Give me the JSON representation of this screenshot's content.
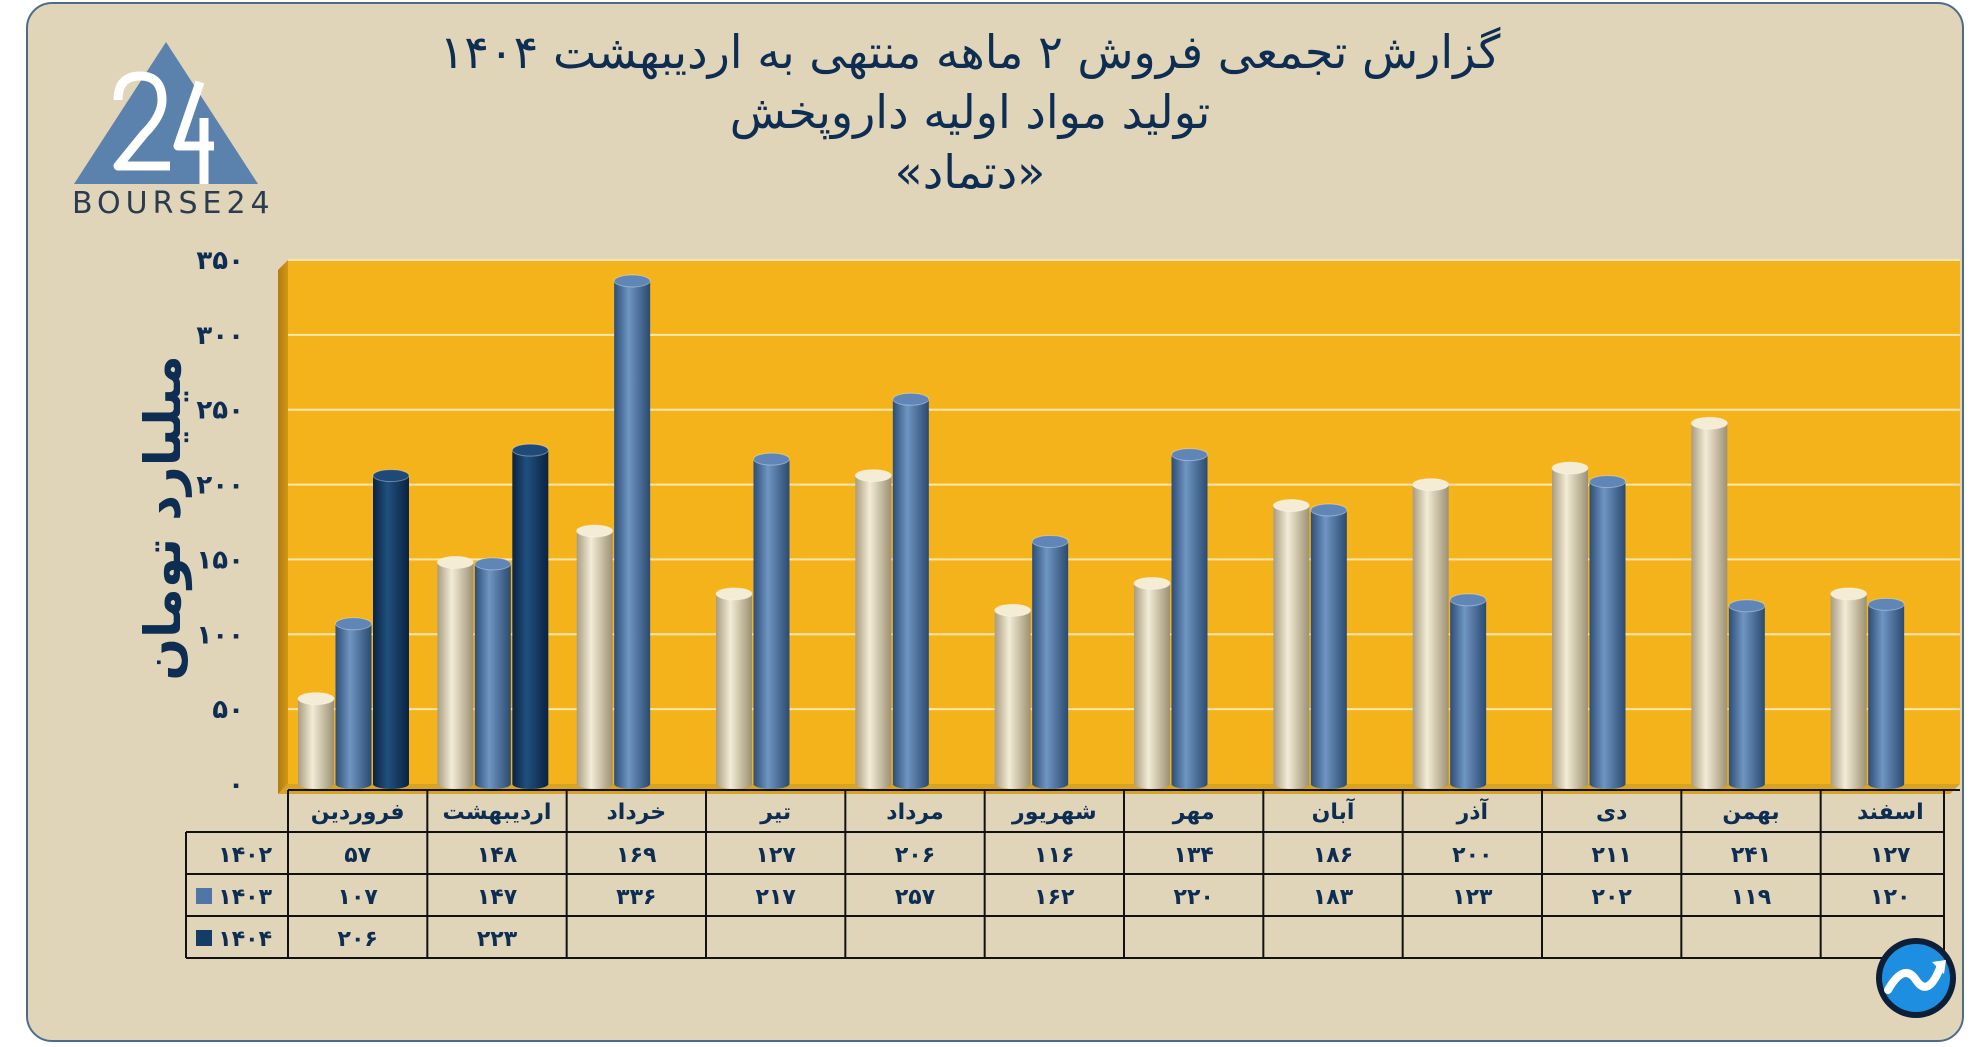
{
  "title": {
    "line1": "گزارش تجمعی فروش ۲ ماهه منتهی به اردیبهشت ۱۴۰۴",
    "line2": "تولید مواد اولیه داروپخش",
    "line3": "«دتماد»"
  },
  "logo": {
    "text": "BOURSE24",
    "icon": "bourse24-logo-icon"
  },
  "badge": {
    "icon": "trend-chart-badge-icon"
  },
  "colors": {
    "background": "#e0d4b9",
    "plot_area": "#f5b31b",
    "series_1402": "#e6dcc0",
    "series_1403": "#4f76a6",
    "series_1404": "#143d66",
    "text_dark": "#0d2d52"
  },
  "chart_data": {
    "type": "bar",
    "ylabel": "میلیارد تومان",
    "ylim": [
      0,
      350
    ],
    "yticks": [
      "۰",
      "۵۰",
      "۱۰۰",
      "۱۵۰",
      "۲۰۰",
      "۲۵۰",
      "۳۰۰",
      "۳۵۰"
    ],
    "grid": true,
    "categories": [
      "فروردین",
      "اردیبهشت",
      "خرداد",
      "تیر",
      "مرداد",
      "شهریور",
      "مهر",
      "آبان",
      "آذر",
      "دی",
      "بهمن",
      "اسفند"
    ],
    "series": [
      {
        "name": "۱۴۰۲",
        "values": [
          57,
          148,
          169,
          127,
          206,
          116,
          134,
          186,
          200,
          211,
          241,
          127
        ],
        "labels": [
          "۵۷",
          "۱۴۸",
          "۱۶۹",
          "۱۲۷",
          "۲۰۶",
          "۱۱۶",
          "۱۳۴",
          "۱۸۶",
          "۲۰۰",
          "۲۱۱",
          "۲۴۱",
          "۱۲۷"
        ]
      },
      {
        "name": "۱۴۰۳",
        "values": [
          107,
          147,
          336,
          217,
          257,
          162,
          220,
          183,
          123,
          202,
          119,
          120
        ],
        "labels": [
          "۱۰۷",
          "۱۴۷",
          "۳۳۶",
          "۲۱۷",
          "۲۵۷",
          "۱۶۲",
          "۲۲۰",
          "۱۸۳",
          "۱۲۳",
          "۲۰۲",
          "۱۱۹",
          "۱۲۰"
        ]
      },
      {
        "name": "۱۴۰۴",
        "values": [
          206,
          223,
          null,
          null,
          null,
          null,
          null,
          null,
          null,
          null,
          null,
          null
        ],
        "labels": [
          "۲۰۶",
          "۲۲۳",
          "",
          "",
          "",
          "",
          "",
          "",
          "",
          "",
          "",
          ""
        ]
      }
    ]
  }
}
